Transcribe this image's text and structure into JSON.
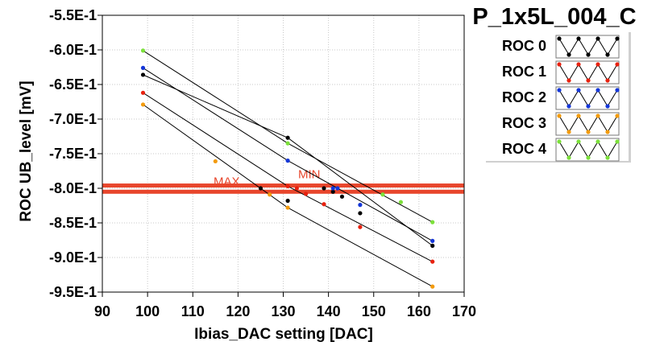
{
  "chart_data": {
    "type": "line",
    "title": "P_1x5L_004_C",
    "xlabel": "Ibias_DAC setting [DAC]",
    "ylabel": "ROC UB_level [mV]",
    "xlim": [
      90,
      170
    ],
    "ylim": [
      -0.95,
      -0.55
    ],
    "x_ticks": [
      90,
      100,
      110,
      120,
      130,
      140,
      150,
      160,
      170
    ],
    "x_tick_labels": [
      "90",
      "100",
      "110",
      "120",
      "130",
      "140",
      "150",
      "160",
      "170"
    ],
    "y_ticks": [
      -0.55,
      -0.6,
      -0.65,
      -0.7,
      -0.75,
      -0.8,
      -0.85,
      -0.9,
      -0.95
    ],
    "y_tick_labels": [
      "-5.5E-1",
      "-6.0E-1",
      "-6.5E-1",
      "-7.0E-1",
      "-7.5E-1",
      "-8.0E-1",
      "-8.5E-1",
      "-9.0E-1",
      "-9.5E-1"
    ],
    "grid": true,
    "legend_position": "top-right",
    "series": [
      {
        "name": "ROC 0",
        "color": "#000000",
        "x": [
          99,
          131,
          163
        ],
        "y": [
          -0.636,
          -0.727,
          -0.883
        ]
      },
      {
        "name": "ROC 1",
        "color": "#e8210f",
        "x": [
          99,
          131,
          163
        ],
        "y": [
          -0.662,
          -0.797,
          -0.906
        ]
      },
      {
        "name": "ROC 2",
        "color": "#1436d8",
        "x": [
          99,
          131,
          163
        ],
        "y": [
          -0.626,
          -0.76,
          -0.876
        ]
      },
      {
        "name": "ROC 3",
        "color": "#f39b0e",
        "x": [
          99,
          131,
          163
        ],
        "y": [
          -0.679,
          -0.828,
          -0.942
        ]
      },
      {
        "name": "ROC 4",
        "color": "#7ce03a",
        "x": [
          99,
          131,
          163
        ],
        "y": [
          -0.601,
          -0.735,
          -0.849
        ]
      }
    ],
    "extra_points": [
      {
        "color": "#000000",
        "x": [
          125,
          131,
          139,
          141,
          143,
          147
        ],
        "y": [
          -0.8,
          -0.818,
          -0.8,
          -0.805,
          -0.812,
          -0.836
        ]
      },
      {
        "color": "#e8210f",
        "x": [
          133,
          135,
          139,
          147
        ],
        "y": [
          -0.8,
          -0.808,
          -0.823,
          -0.856
        ]
      },
      {
        "color": "#1436d8",
        "x": [
          141,
          142,
          147
        ],
        "y": [
          -0.8,
          -0.8,
          -0.824
        ]
      },
      {
        "color": "#f39b0e",
        "x": [
          115,
          127
        ],
        "y": [
          -0.761,
          -0.809
        ]
      },
      {
        "color": "#7ce03a",
        "x": [
          152,
          156
        ],
        "y": [
          -0.809,
          -0.82
        ]
      }
    ],
    "limits": [
      {
        "label": "MAX",
        "y": -0.805,
        "color": "#e8462c"
      },
      {
        "label": "MIN",
        "y": -0.796,
        "color": "#e8462c"
      }
    ]
  }
}
